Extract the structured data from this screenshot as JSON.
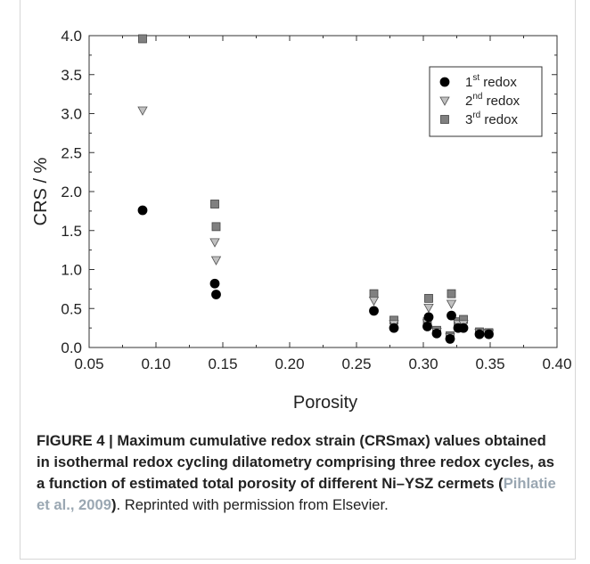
{
  "chart_data": {
    "type": "scatter",
    "title": "",
    "xlabel": "Porosity",
    "ylabel": "CRS / %",
    "xlim": [
      0.05,
      0.4
    ],
    "ylim": [
      0.0,
      4.0
    ],
    "x_ticks": [
      "0.05",
      "0.10",
      "0.15",
      "0.20",
      "0.25",
      "0.30",
      "0.35",
      "0.40"
    ],
    "y_ticks": [
      "0.0",
      "0.5",
      "1.0",
      "1.5",
      "2.0",
      "2.5",
      "3.0",
      "3.5",
      "4.0"
    ],
    "grid": false,
    "legend_position": "top-right",
    "series": [
      {
        "name": "1st redox",
        "label_base": "1",
        "label_sup": "st",
        "label_rest": " redox",
        "marker": "circle",
        "color": "#000000",
        "points": [
          [
            0.09,
            1.76
          ],
          [
            0.144,
            0.82
          ],
          [
            0.145,
            0.68
          ],
          [
            0.263,
            0.47
          ],
          [
            0.278,
            0.25
          ],
          [
            0.303,
            0.27
          ],
          [
            0.304,
            0.39
          ],
          [
            0.31,
            0.18
          ],
          [
            0.32,
            0.11
          ],
          [
            0.321,
            0.41
          ],
          [
            0.326,
            0.25
          ],
          [
            0.33,
            0.25
          ],
          [
            0.342,
            0.17
          ],
          [
            0.349,
            0.17
          ]
        ]
      },
      {
        "name": "2nd redox",
        "label_base": "2",
        "label_sup": "nd",
        "label_rest": " redox",
        "marker": "triangle-down",
        "color": "#c0c0c0",
        "points": [
          [
            0.09,
            3.04
          ],
          [
            0.144,
            1.35
          ],
          [
            0.145,
            1.12
          ],
          [
            0.263,
            0.6
          ],
          [
            0.278,
            0.3
          ],
          [
            0.303,
            0.31
          ],
          [
            0.304,
            0.51
          ],
          [
            0.31,
            0.2
          ],
          [
            0.32,
            0.13
          ],
          [
            0.321,
            0.56
          ],
          [
            0.326,
            0.3
          ],
          [
            0.33,
            0.3
          ],
          [
            0.342,
            0.19
          ],
          [
            0.349,
            0.18
          ]
        ]
      },
      {
        "name": "3rd redox",
        "label_base": "3",
        "label_sup": "rd",
        "label_rest": " redox",
        "marker": "square",
        "color": "#808080",
        "points": [
          [
            0.09,
            3.96
          ],
          [
            0.144,
            1.84
          ],
          [
            0.145,
            1.55
          ],
          [
            0.263,
            0.69
          ],
          [
            0.278,
            0.35
          ],
          [
            0.303,
            0.33
          ],
          [
            0.304,
            0.63
          ],
          [
            0.31,
            0.22
          ],
          [
            0.32,
            0.15
          ],
          [
            0.321,
            0.69
          ],
          [
            0.326,
            0.33
          ],
          [
            0.33,
            0.36
          ],
          [
            0.342,
            0.2
          ],
          [
            0.349,
            0.19
          ]
        ]
      }
    ]
  },
  "caption": {
    "figure_label": "FIGURE 4 | Maximum cumulative redox strain (CRSmax) values obtained in isothermal redox cycling dilatometry comprising three redox cycles, as a function of estimated total porosity of different Ni–YSZ cermets (",
    "citation": "Pihlatie et al., 2009",
    "figure_label_end": ")",
    "reprint_note": ". Reprinted with permission from Elsevier."
  }
}
